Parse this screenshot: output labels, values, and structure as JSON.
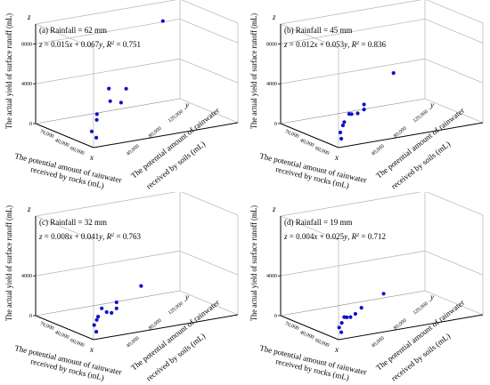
{
  "figure": {
    "common": {
      "z_axis_label": "The actual yield of surface runoff (mL)",
      "x_axis_label_lines": [
        "The potential amount of rainwater",
        "received by rocks (mL)"
      ],
      "y_axis_label_lines": [
        "The potential amount of rainwater",
        "received by soils (mL)"
      ],
      "x_letter": "x",
      "y_letter": "y",
      "z_letter": "z",
      "x_ticks": [
        "70,000",
        "40,000",
        "60,000"
      ],
      "y_ticks": [
        "40,000",
        "80,000",
        "120,000"
      ],
      "marker_color": "#1010cc",
      "axis_color": "#000000",
      "grid_color": "#bdbdbd"
    }
  },
  "chart_data": [
    {
      "type": "scatter",
      "title": "(a) Rainfall = 62 mm",
      "equation": {
        "pre": "z",
        "mid": " = 0.015",
        "x": "x",
        "plus": " + 0.067",
        "y": "y",
        "r": ", R",
        "sup": "2",
        "val": " = 0.751"
      },
      "z_ticks": [
        "0",
        "4000",
        "8000"
      ],
      "zlim": [
        0,
        10000
      ],
      "points": [
        {
          "x": 62000,
          "y": 20000,
          "z": 400
        },
        {
          "x": 56000,
          "y": 22000,
          "z": 700
        },
        {
          "x": 52000,
          "y": 30000,
          "z": 1500
        },
        {
          "x": 48000,
          "y": 34000,
          "z": 1800
        },
        {
          "x": 50000,
          "y": 42000,
          "z": 4300
        },
        {
          "x": 47000,
          "y": 46000,
          "z": 2800
        },
        {
          "x": 46000,
          "y": 56000,
          "z": 2400
        },
        {
          "x": 40000,
          "y": 66000,
          "z": 3300
        },
        {
          "x": 26000,
          "y": 110000,
          "z": 8500
        }
      ]
    },
    {
      "type": "scatter",
      "title": "(b) Rainfall = 45 mm",
      "equation": {
        "pre": "z",
        "mid": " = 0.012",
        "x": "x",
        "plus": " + 0.053",
        "y": "y",
        "r": ", R",
        "sup": "2",
        "val": " = 0.836"
      },
      "z_ticks": [
        "0",
        "4000",
        "8000"
      ],
      "zlim": [
        0,
        10000
      ],
      "points": [
        {
          "x": 62000,
          "y": 20000,
          "z": 300
        },
        {
          "x": 57000,
          "y": 24000,
          "z": 600
        },
        {
          "x": 53000,
          "y": 30000,
          "z": 1000
        },
        {
          "x": 50000,
          "y": 34000,
          "z": 1100
        },
        {
          "x": 48000,
          "y": 40000,
          "z": 1700
        },
        {
          "x": 46000,
          "y": 44000,
          "z": 1500
        },
        {
          "x": 45000,
          "y": 50000,
          "z": 1400
        },
        {
          "x": 38000,
          "y": 62000,
          "z": 1700
        },
        {
          "x": 38000,
          "y": 62000,
          "z": 1200
        },
        {
          "x": 24000,
          "y": 100000,
          "z": 3400
        }
      ]
    },
    {
      "type": "scatter",
      "title": "(c) Rainfall = 32 mm",
      "equation": {
        "pre": "z",
        "mid": " = 0.008",
        "x": "x",
        "plus": " + 0.041",
        "y": "y",
        "r": ", R",
        "sup": "2",
        "val": " = 0.763"
      },
      "z_ticks": [
        "0",
        "4000"
      ],
      "zlim": [
        0,
        10000
      ],
      "points": [
        {
          "x": 62000,
          "y": 20000,
          "z": 200
        },
        {
          "x": 56000,
          "y": 24000,
          "z": 500
        },
        {
          "x": 52000,
          "y": 30000,
          "z": 700
        },
        {
          "x": 49000,
          "y": 34000,
          "z": 800
        },
        {
          "x": 48000,
          "y": 38000,
          "z": 1500
        },
        {
          "x": 46000,
          "y": 44000,
          "z": 900
        },
        {
          "x": 44000,
          "y": 50000,
          "z": 600
        },
        {
          "x": 40000,
          "y": 58000,
          "z": 700
        },
        {
          "x": 40000,
          "y": 58000,
          "z": 1300
        },
        {
          "x": 28000,
          "y": 90000,
          "z": 1700
        }
      ]
    },
    {
      "type": "scatter",
      "title": "(d) Rainfall = 19 mm",
      "equation": {
        "pre": "z",
        "mid": " = 0.004",
        "x": "x",
        "plus": " + 0.025",
        "y": "y",
        "r": ", R",
        "sup": "2",
        "val": " = 0.712"
      },
      "z_ticks": [
        "0",
        "4000"
      ],
      "zlim": [
        0,
        10000
      ],
      "points": [
        {
          "x": 62000,
          "y": 20000,
          "z": 150
        },
        {
          "x": 56000,
          "y": 24000,
          "z": 250
        },
        {
          "x": 52000,
          "y": 30000,
          "z": 400
        },
        {
          "x": 50000,
          "y": 34000,
          "z": 800
        },
        {
          "x": 48000,
          "y": 38000,
          "z": 600
        },
        {
          "x": 45000,
          "y": 44000,
          "z": 350
        },
        {
          "x": 43000,
          "y": 50000,
          "z": 450
        },
        {
          "x": 42000,
          "y": 56000,
          "z": 900
        },
        {
          "x": 30000,
          "y": 86000,
          "z": 1100
        }
      ]
    }
  ]
}
